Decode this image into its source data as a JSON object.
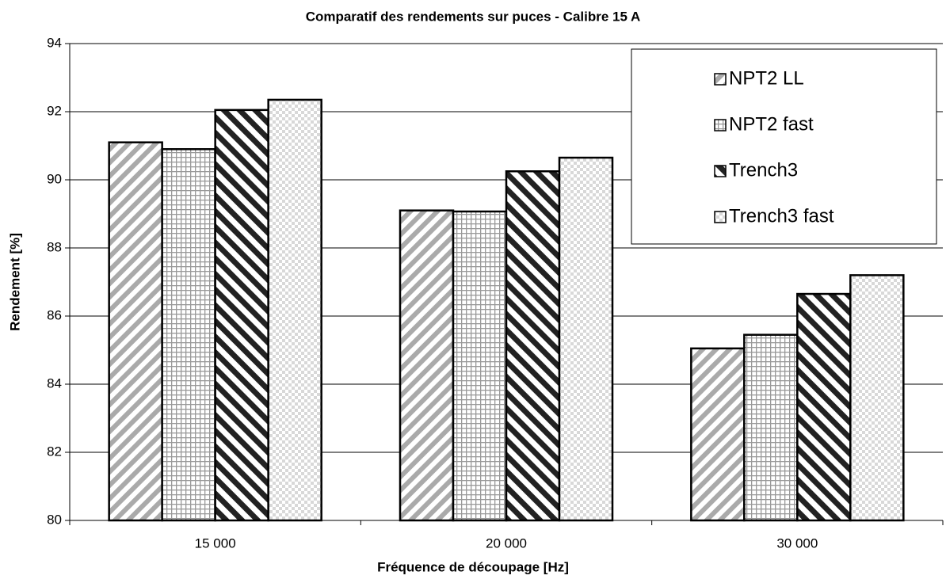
{
  "chart_data": {
    "type": "bar",
    "title": "Comparatif des rendements sur puces - Calibre 15 A",
    "x_label": "Fréquence de découpage [Hz]",
    "y_label": "Rendement [%]",
    "categories": [
      "15 000",
      "20 000",
      "30 000"
    ],
    "series": [
      {
        "name": "NPT2 LL",
        "color": "#aaaaaa",
        "values": [
          91.1,
          89.1,
          85.05
        ]
      },
      {
        "name": "NPT2 fast",
        "color": "#999999",
        "values": [
          90.9,
          89.07,
          85.45
        ]
      },
      {
        "name": "Trench3",
        "color": "#222222",
        "values": [
          92.05,
          90.25,
          86.65
        ]
      },
      {
        "name": "Trench3 fast",
        "color": "#d8d8d8",
        "values": [
          92.35,
          90.65,
          87.2
        ]
      }
    ],
    "ylim": [
      80,
      94
    ],
    "yticks": [
      80,
      82,
      84,
      86,
      88,
      90,
      92,
      94
    ],
    "grid": true,
    "legend": "top-right"
  }
}
